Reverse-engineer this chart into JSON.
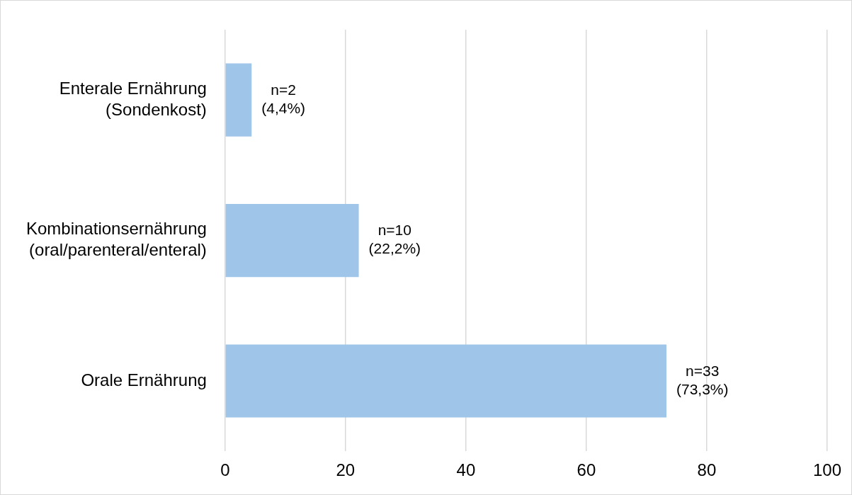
{
  "chart_data": {
    "type": "bar",
    "orientation": "horizontal",
    "categories": [
      "Enterale Ernährung\n(Sondenkost)",
      "Kombinationsernährung\n(oral/parenteral/enteral)",
      "Orale Ernährung"
    ],
    "values": [
      4.4,
      22.2,
      73.3
    ],
    "value_labels": [
      "n=2\n(4,4%)",
      "n=10\n(22,2%)",
      "n=33\n(73,3%)"
    ],
    "color": "#9fc5e8",
    "xlim": [
      0,
      100
    ],
    "xticks": [
      0,
      20,
      40,
      60,
      80,
      100
    ],
    "grid": "x"
  }
}
